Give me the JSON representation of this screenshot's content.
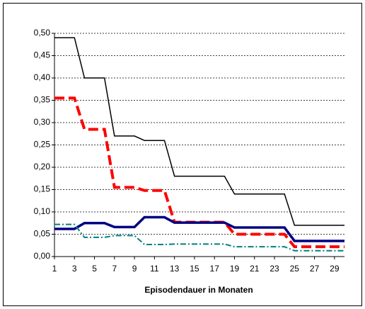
{
  "chart_data": {
    "type": "line",
    "xlabel": "Episodendauer in Monaten",
    "x": [
      1,
      2,
      3,
      4,
      5,
      6,
      7,
      8,
      9,
      10,
      11,
      12,
      13,
      14,
      15,
      16,
      17,
      18,
      19,
      20,
      21,
      22,
      23,
      24,
      25,
      26,
      27,
      28,
      29,
      30
    ],
    "series": [
      {
        "color": "#000000",
        "style": "solid-thin",
        "values": [
          0.49,
          0.49,
          0.49,
          0.4,
          0.4,
          0.4,
          0.27,
          0.27,
          0.27,
          0.26,
          0.26,
          0.26,
          0.18,
          0.18,
          0.18,
          0.18,
          0.18,
          0.18,
          0.14,
          0.14,
          0.14,
          0.14,
          0.14,
          0.14,
          0.07,
          0.07,
          0.07,
          0.07,
          0.07,
          0.07
        ]
      },
      {
        "color": "#ff0000",
        "style": "dash",
        "values": [
          0.355,
          0.355,
          0.355,
          0.285,
          0.285,
          0.285,
          0.155,
          0.155,
          0.155,
          0.148,
          0.148,
          0.148,
          0.077,
          0.077,
          0.077,
          0.077,
          0.077,
          0.077,
          0.05,
          0.05,
          0.05,
          0.05,
          0.05,
          0.05,
          0.022,
          0.022,
          0.022,
          0.022,
          0.022,
          0.022
        ]
      },
      {
        "color": "#000080",
        "style": "solid-thick",
        "values": [
          0.062,
          0.062,
          0.062,
          0.075,
          0.075,
          0.075,
          0.066,
          0.066,
          0.066,
          0.088,
          0.088,
          0.088,
          0.076,
          0.076,
          0.076,
          0.076,
          0.076,
          0.076,
          0.065,
          0.065,
          0.065,
          0.065,
          0.065,
          0.065,
          0.035,
          0.035,
          0.035,
          0.035,
          0.035,
          0.035
        ]
      },
      {
        "color": "#008080",
        "style": "dashdot",
        "values": [
          0.072,
          0.072,
          0.072,
          0.043,
          0.043,
          0.043,
          0.047,
          0.047,
          0.047,
          0.027,
          0.027,
          0.027,
          0.028,
          0.028,
          0.028,
          0.028,
          0.028,
          0.028,
          0.022,
          0.022,
          0.022,
          0.022,
          0.022,
          0.022,
          0.013,
          0.013,
          0.013,
          0.013,
          0.013,
          0.013
        ]
      }
    ],
    "xlim": [
      1,
      30
    ],
    "xticks": [
      1,
      3,
      5,
      7,
      9,
      11,
      13,
      15,
      17,
      19,
      21,
      23,
      25,
      27,
      29
    ],
    "ylim": [
      0,
      0.5
    ],
    "yticks": [
      {
        "value": 0,
        "label": "0,00"
      },
      {
        "value": 0.05,
        "label": "0,05"
      },
      {
        "value": 0.1,
        "label": "0,10"
      },
      {
        "value": 0.15,
        "label": "0,15"
      },
      {
        "value": 0.2,
        "label": "0,20"
      },
      {
        "value": 0.25,
        "label": "0,25"
      },
      {
        "value": 0.3,
        "label": "0,30"
      },
      {
        "value": 0.35,
        "label": "0,35"
      },
      {
        "value": 0.4,
        "label": "0,40"
      },
      {
        "value": 0.45,
        "label": "0,45"
      },
      {
        "value": 0.5,
        "label": "0,50"
      }
    ],
    "grid": true
  }
}
